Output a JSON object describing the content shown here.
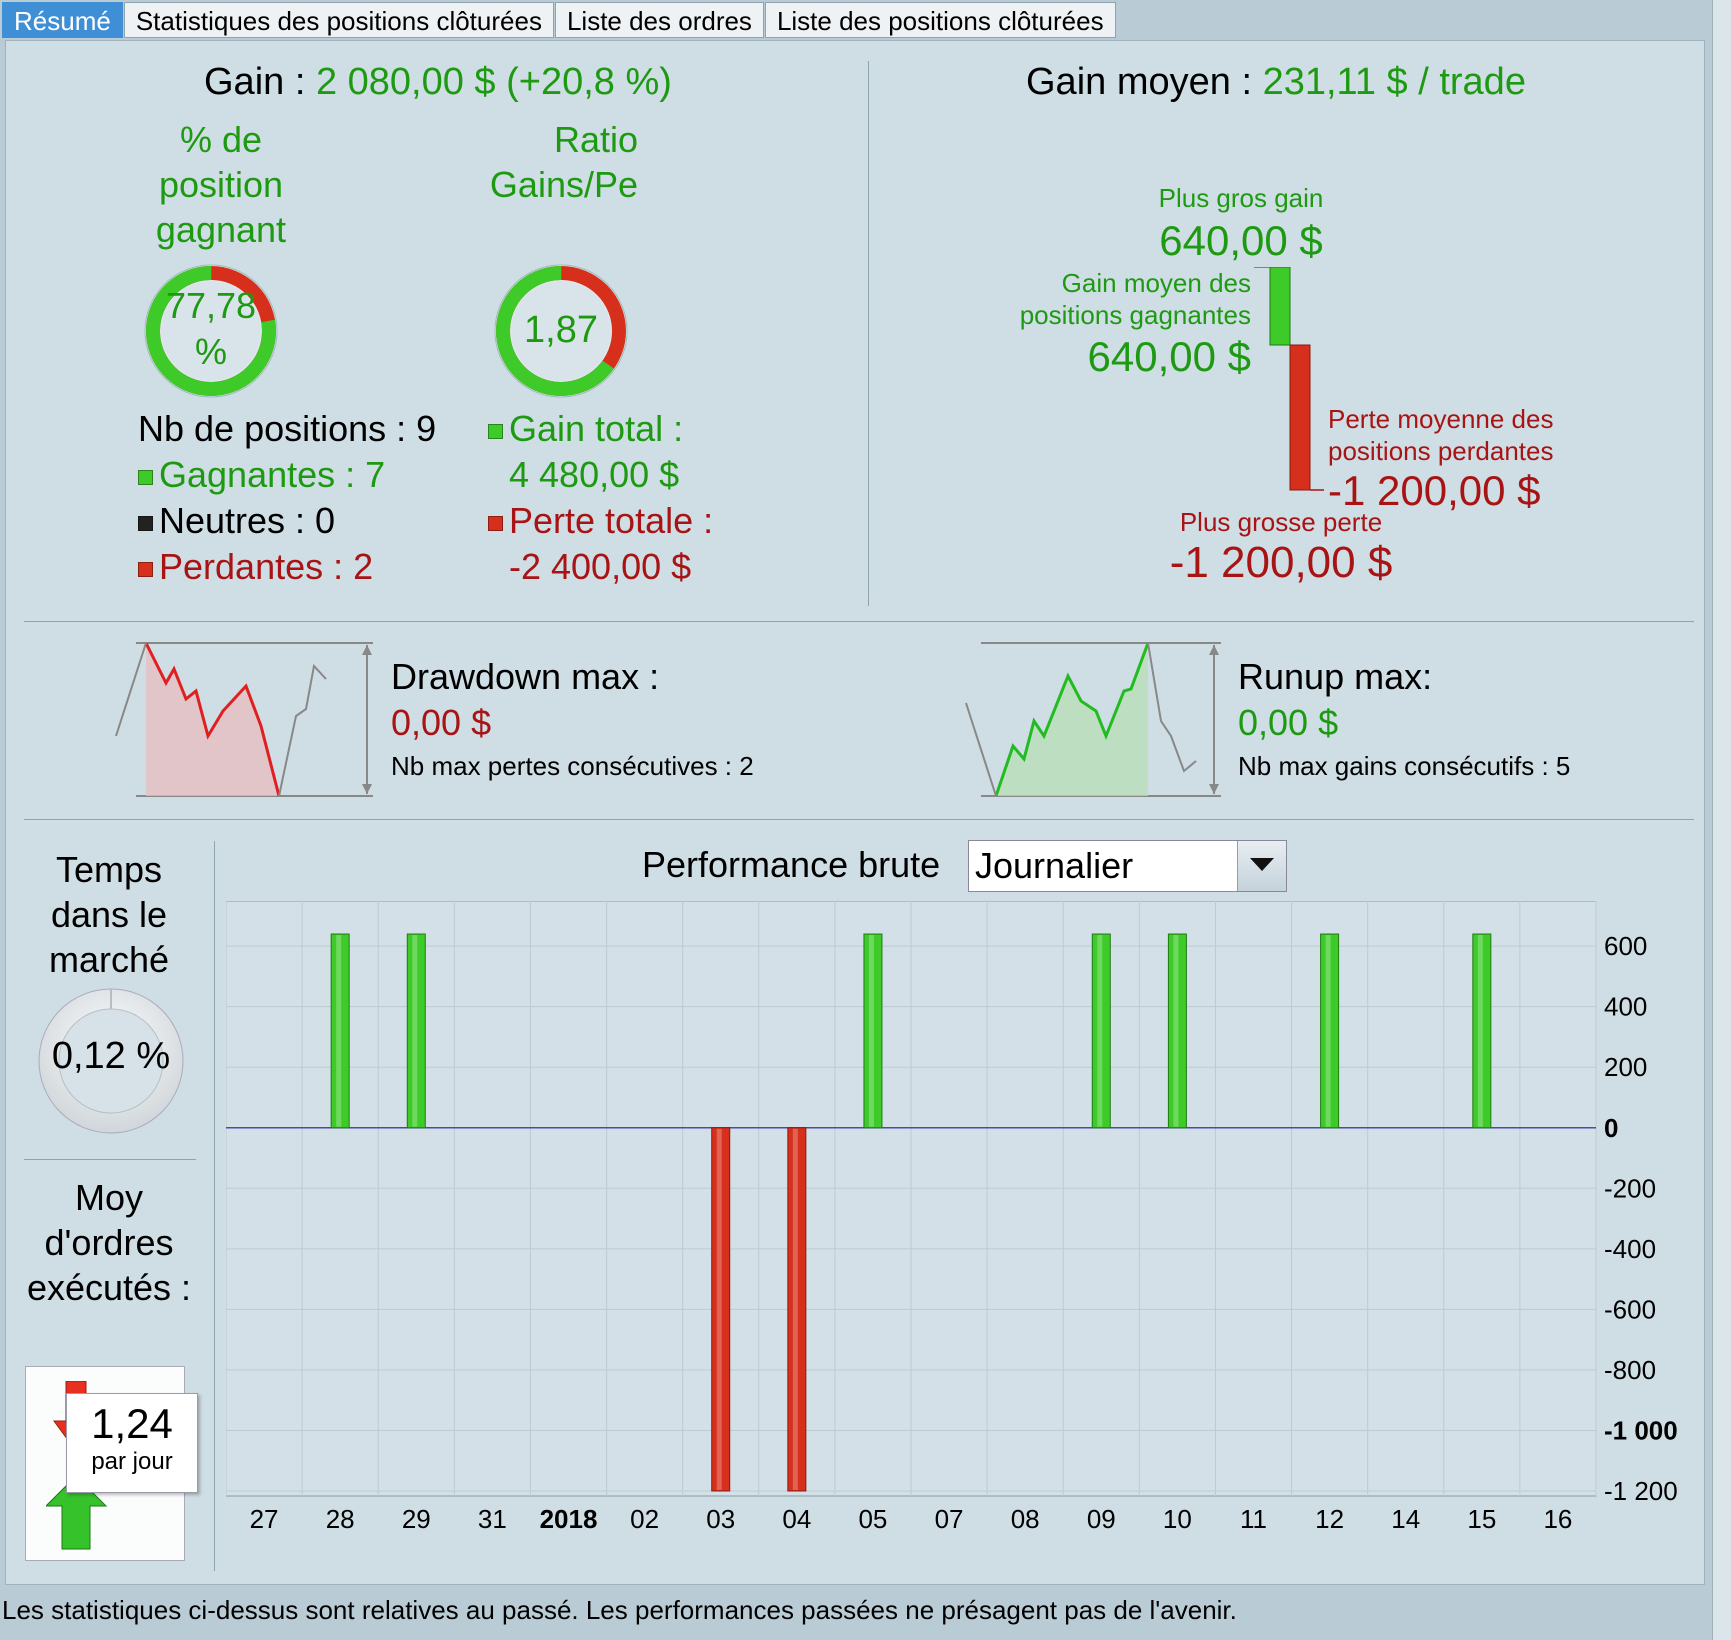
{
  "tabs": [
    "Résumé",
    "Statistiques des positions clôturées",
    "Liste des ordres",
    "Liste des positions clôturées"
  ],
  "summary": {
    "gain_label": "Gain :",
    "gain_value": "2 080,00 $",
    "gain_pct": "(+20,8 %)",
    "pct_winning_title": "% de position gagnant",
    "pct_winning_value": "77,78 %",
    "pct_winning_fraction": 0.7778,
    "ratio_title": "Ratio Gains/Pe",
    "ratio_value": "1,87",
    "nb_positions": "Nb de positions : 9",
    "gagnantes": "Gagnantes : 7",
    "neutres": "Neutres : 0",
    "perdantes": "Perdantes : 2",
    "gain_total_label": "Gain total :",
    "gain_total_value": "4 480,00 $",
    "perte_totale_label": "Perte totale :",
    "perte_totale_value": "-2 400,00 $"
  },
  "avg": {
    "gain_moyen_label": "Gain moyen :",
    "gain_moyen_value": "231,11 $ / trade",
    "plus_gros_gain_label": "Plus gros gain",
    "plus_gros_gain_value": "640,00 $",
    "gain_moyen_gagnantes_label": "Gain moyen des positions gagnantes",
    "gain_moyen_gagnantes_value": "640,00 $",
    "perte_moyenne_label": "Perte moyenne des positions perdantes",
    "perte_moyenne_value": "-1 200,00 $",
    "plus_grosse_perte_label": "Plus grosse perte",
    "plus_grosse_perte_value": "-1 200,00 $"
  },
  "drawdown": {
    "title": "Drawdown max :",
    "value": "0,00 $",
    "sub": "Nb max pertes consécutives : 2"
  },
  "runup": {
    "title": "Runup max:",
    "value": "0,00 $",
    "sub": "Nb max gains consécutifs : 5"
  },
  "time_in_market": {
    "title": "Temps dans le marché",
    "value": "0,12 %"
  },
  "orders": {
    "title": "Moy d'ordres exécutés :",
    "value": "1,24",
    "unit": "par jour"
  },
  "perf": {
    "title": "Performance brute",
    "period_selected": "Journalier"
  },
  "colors": {
    "gain": "#1e9a12",
    "loss": "#a81414",
    "bar_green": "#3ecb2a",
    "bar_red": "#d6301d"
  },
  "chart_data": {
    "type": "bar",
    "categories": [
      "27",
      "28",
      "29",
      "31",
      "2018",
      "02",
      "03",
      "04",
      "05",
      "07",
      "08",
      "09",
      "10",
      "11",
      "12",
      "14",
      "15",
      "16"
    ],
    "values": [
      0,
      640,
      640,
      0,
      0,
      0,
      -1200,
      -1200,
      640,
      0,
      0,
      640,
      640,
      0,
      640,
      0,
      640,
      0
    ],
    "ylim": [
      -1200,
      600
    ],
    "yticks": [
      "600",
      "400",
      "200",
      "0",
      "-200",
      "-400",
      "-600",
      "-800",
      "-1 000",
      "-1 200"
    ],
    "ytick_values": [
      600,
      400,
      200,
      0,
      -200,
      -400,
      -600,
      -800,
      -1000,
      -1200
    ],
    "title": "Performance brute",
    "grid": true
  },
  "footer": "Les statistiques ci-dessus sont relatives au passé. Les performances passées ne présagent pas de l'avenir."
}
